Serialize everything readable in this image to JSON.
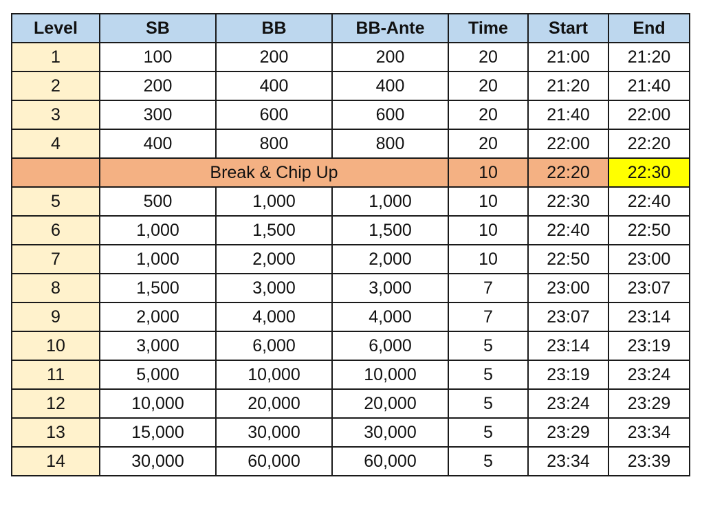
{
  "table": {
    "headers": [
      "Level",
      "SB",
      "BB",
      "BB-Ante",
      "Time",
      "Start",
      "End"
    ],
    "rows": [
      {
        "level": "1",
        "sb": "100",
        "bb": "200",
        "ante": "200",
        "time": "20",
        "start": "21:00",
        "end": "21:20"
      },
      {
        "level": "2",
        "sb": "200",
        "bb": "400",
        "ante": "400",
        "time": "20",
        "start": "21:20",
        "end": "21:40"
      },
      {
        "level": "3",
        "sb": "300",
        "bb": "600",
        "ante": "600",
        "time": "20",
        "start": "21:40",
        "end": "22:00"
      },
      {
        "level": "4",
        "sb": "400",
        "bb": "800",
        "ante": "800",
        "time": "20",
        "start": "22:00",
        "end": "22:20"
      },
      {
        "break": true,
        "label": "Break & Chip Up",
        "time": "10",
        "start": "22:20",
        "end": "22:30"
      },
      {
        "level": "5",
        "sb": "500",
        "bb": "1,000",
        "ante": "1,000",
        "time": "10",
        "start": "22:30",
        "end": "22:40"
      },
      {
        "level": "6",
        "sb": "1,000",
        "bb": "1,500",
        "ante": "1,500",
        "time": "10",
        "start": "22:40",
        "end": "22:50"
      },
      {
        "level": "7",
        "sb": "1,000",
        "bb": "2,000",
        "ante": "2,000",
        "time": "10",
        "start": "22:50",
        "end": "23:00"
      },
      {
        "level": "8",
        "sb": "1,500",
        "bb": "3,000",
        "ante": "3,000",
        "time": "7",
        "start": "23:00",
        "end": "23:07"
      },
      {
        "level": "9",
        "sb": "2,000",
        "bb": "4,000",
        "ante": "4,000",
        "time": "7",
        "start": "23:07",
        "end": "23:14"
      },
      {
        "level": "10",
        "sb": "3,000",
        "bb": "6,000",
        "ante": "6,000",
        "time": "5",
        "start": "23:14",
        "end": "23:19"
      },
      {
        "level": "11",
        "sb": "5,000",
        "bb": "10,000",
        "ante": "10,000",
        "time": "5",
        "start": "23:19",
        "end": "23:24"
      },
      {
        "level": "12",
        "sb": "10,000",
        "bb": "20,000",
        "ante": "20,000",
        "time": "5",
        "start": "23:24",
        "end": "23:29"
      },
      {
        "level": "13",
        "sb": "15,000",
        "bb": "30,000",
        "ante": "30,000",
        "time": "5",
        "start": "23:29",
        "end": "23:34"
      },
      {
        "level": "14",
        "sb": "30,000",
        "bb": "60,000",
        "ante": "60,000",
        "time": "5",
        "start": "23:34",
        "end": "23:39"
      }
    ]
  },
  "colors": {
    "header": "#bdd7ee",
    "level_column": "#fff2cc",
    "break_row": "#f4b183",
    "highlight": "#ffff00"
  }
}
